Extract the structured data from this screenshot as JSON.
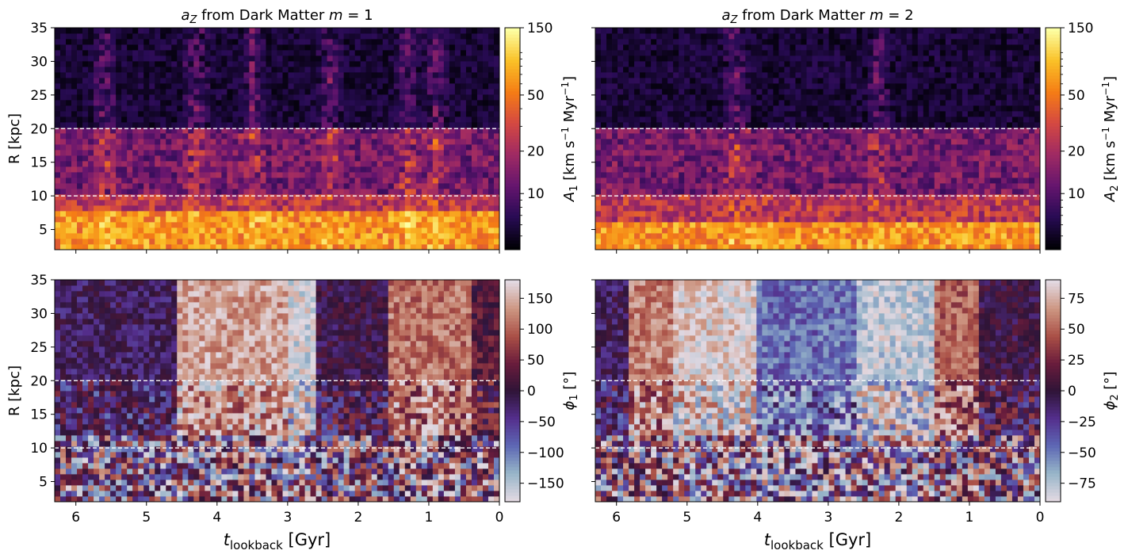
{
  "chart_data": [
    {
      "type": "heatmap",
      "title_prefix": "a",
      "title_sub": "Z",
      "title_mid": " from Dark Matter ",
      "title_m": "m",
      "title_eq": " = 1",
      "x_label_main": "t",
      "x_label_sub": "lookback",
      "x_label_unit": " [Gyr]",
      "x_ticks": [
        "6",
        "5",
        "4",
        "3",
        "2",
        "1",
        "0"
      ],
      "xlim": [
        6.3,
        0
      ],
      "ylabel": "R [kpc]",
      "y_ticks": [
        "5",
        "10",
        "15",
        "20",
        "25",
        "30",
        "35"
      ],
      "ylim": [
        2,
        35
      ],
      "hlines": [
        10,
        20
      ],
      "colormap": "inferno",
      "colorbar_scale": "log",
      "colorbar_range": [
        4,
        150
      ],
      "colorbar_ticks": [
        "10",
        "20",
        "50",
        "150"
      ],
      "colorbar_label_main": "A",
      "colorbar_label_sub": "1",
      "colorbar_label_unit": " [km s",
      "colorbar_label_exp": "−1",
      "colorbar_label_unit2": " Myr",
      "colorbar_label_exp2": "−1",
      "colorbar_label_end": "]",
      "high_amplitude_band_R": [
        2,
        8
      ],
      "vertical_streak_times_gyr": [
        5.6,
        4.3,
        3.5,
        2.4,
        1.3,
        0.9
      ]
    },
    {
      "type": "heatmap",
      "title_prefix": "a",
      "title_sub": "Z",
      "title_mid": " from Dark Matter ",
      "title_m": "m",
      "title_eq": " = 2",
      "x_label_main": "t",
      "x_label_sub": "lookback",
      "x_label_unit": " [Gyr]",
      "x_ticks": [
        "6",
        "5",
        "4",
        "3",
        "2",
        "1",
        "0"
      ],
      "xlim": [
        6.3,
        0
      ],
      "ylabel": "",
      "y_ticks": [
        "5",
        "10",
        "15",
        "20",
        "25",
        "30",
        "35"
      ],
      "ylim": [
        2,
        35
      ],
      "hlines": [
        10,
        20
      ],
      "colormap": "inferno",
      "colorbar_scale": "log",
      "colorbar_range": [
        4,
        150
      ],
      "colorbar_ticks": [
        "10",
        "20",
        "50",
        "150"
      ],
      "colorbar_label_main": "A",
      "colorbar_label_sub": "2",
      "colorbar_label_unit": " [km s",
      "colorbar_label_exp": "−1",
      "colorbar_label_unit2": " Myr",
      "colorbar_label_exp2": "−1",
      "colorbar_label_end": "]",
      "high_amplitude_band_R": [
        2,
        6
      ],
      "vertical_streak_times_gyr": [
        4.3,
        2.3
      ]
    },
    {
      "type": "heatmap",
      "title": "",
      "x_ticks": [
        "6",
        "5",
        "4",
        "3",
        "2",
        "1",
        "0"
      ],
      "xlim": [
        6.3,
        0
      ],
      "ylabel": "R [kpc]",
      "y_ticks": [
        "5",
        "10",
        "15",
        "20",
        "25",
        "30",
        "35"
      ],
      "ylim": [
        2,
        35
      ],
      "hlines": [
        10,
        20
      ],
      "colormap": "twilight",
      "colorbar_range": [
        -180,
        180
      ],
      "colorbar_ticks": [
        "−150",
        "−100",
        "−50",
        "0",
        "50",
        "100",
        "150"
      ],
      "colorbar_tick_values": [
        -150,
        -100,
        -50,
        0,
        50,
        100,
        150
      ],
      "colorbar_label_main": "ϕ",
      "colorbar_label_sub": "1",
      "colorbar_label_unit": " [°]",
      "phase_regions_gyr": [
        {
          "from": 6.3,
          "to": 4.6,
          "phase_deg": -20
        },
        {
          "from": 4.6,
          "to": 3.0,
          "phase_deg": 140
        },
        {
          "from": 3.0,
          "to": 2.6,
          "phase_deg": -170
        },
        {
          "from": 2.6,
          "to": 1.6,
          "phase_deg": -5
        },
        {
          "from": 1.6,
          "to": 0.4,
          "phase_deg": 110
        },
        {
          "from": 0.4,
          "to": 0.0,
          "phase_deg": 30
        }
      ]
    },
    {
      "type": "heatmap",
      "title": "",
      "x_ticks": [
        "6",
        "5",
        "4",
        "3",
        "2",
        "1",
        "0"
      ],
      "xlim": [
        6.3,
        0
      ],
      "ylabel": "",
      "y_ticks": [
        "5",
        "10",
        "15",
        "20",
        "25",
        "30",
        "35"
      ],
      "ylim": [
        2,
        35
      ],
      "hlines": [
        10,
        20
      ],
      "colormap": "twilight",
      "colorbar_range": [
        -90,
        90
      ],
      "colorbar_ticks": [
        "−75",
        "−50",
        "−25",
        "0",
        "25",
        "50",
        "75"
      ],
      "colorbar_tick_values": [
        -75,
        -50,
        -25,
        0,
        25,
        50,
        75
      ],
      "colorbar_label_main": "ϕ",
      "colorbar_label_sub": "2",
      "colorbar_label_unit": " [°]",
      "phase_regions_gyr": [
        {
          "from": 6.3,
          "to": 5.8,
          "phase_deg": -10
        },
        {
          "from": 5.8,
          "to": 5.2,
          "phase_deg": 60
        },
        {
          "from": 5.2,
          "to": 4.0,
          "phase_deg": 85
        },
        {
          "from": 4.0,
          "to": 2.6,
          "phase_deg": -45
        },
        {
          "from": 2.6,
          "to": 1.5,
          "phase_deg": -80
        },
        {
          "from": 1.5,
          "to": 0.9,
          "phase_deg": 50
        },
        {
          "from": 0.9,
          "to": 0.0,
          "phase_deg": 0
        }
      ]
    }
  ]
}
